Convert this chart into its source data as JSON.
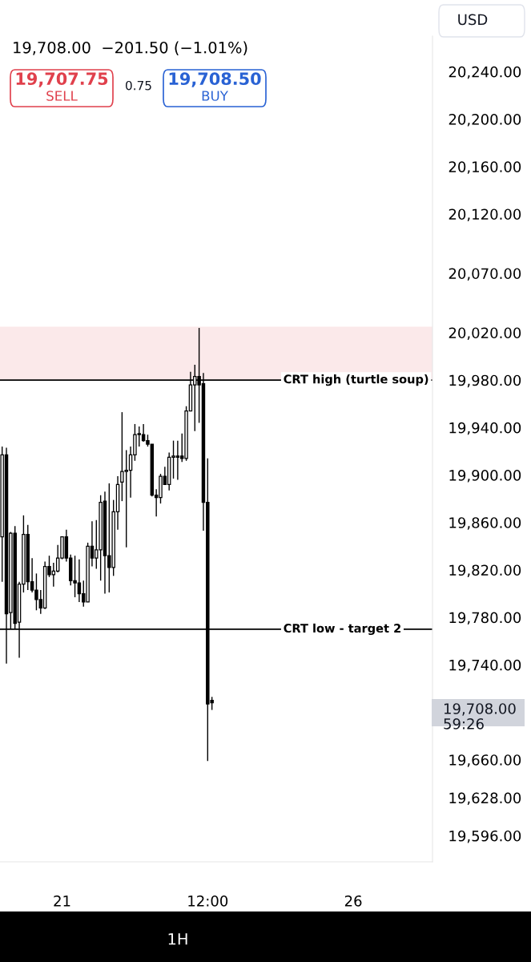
{
  "chart_data": {
    "type": "candlestick",
    "subtitle": "19,708.00  −201.50 (−1.01%)",
    "categories": [
      null,
      null,
      null,
      null,
      null,
      null,
      null,
      null,
      null,
      null,
      null,
      null,
      null,
      null,
      "21",
      null,
      null,
      null,
      null,
      null,
      null,
      null,
      null,
      null,
      null,
      null,
      null,
      null,
      null,
      null,
      null,
      null,
      null,
      null,
      null,
      null,
      null,
      null,
      null,
      null,
      null,
      null,
      null,
      null,
      null,
      null,
      null,
      null,
      "12:00",
      null,
      null,
      null,
      null,
      null,
      null,
      null,
      null,
      null,
      null,
      null,
      null,
      null,
      null,
      null,
      null,
      null,
      null,
      null,
      null,
      null,
      null,
      null,
      null,
      null,
      null,
      null,
      null,
      null,
      null,
      null,
      null,
      null,
      "26",
      null,
      null,
      null,
      null,
      null,
      null,
      null,
      null,
      null,
      null,
      null,
      null,
      null,
      null,
      null,
      null,
      null,
      null
    ],
    "color": "#000000",
    "ohlc": [
      [
        19848,
        19924,
        19810,
        19917
      ],
      [
        19917,
        19923,
        19741,
        19783
      ],
      [
        19784,
        19852,
        19770,
        19851
      ],
      [
        19851,
        19857,
        19770,
        19775
      ],
      [
        19776,
        19810,
        19746,
        19808
      ],
      [
        19808,
        19866,
        19801,
        19850
      ],
      [
        19850,
        19858,
        19803,
        19810
      ],
      [
        19810,
        19830,
        19801,
        19803
      ],
      [
        19803,
        19817,
        19786,
        19795
      ],
      [
        19795,
        19803,
        19783,
        19788
      ],
      [
        19788,
        19827,
        19787,
        19823
      ],
      [
        19823,
        19832,
        19814,
        19816
      ],
      [
        19816,
        19826,
        19806,
        19819
      ],
      [
        19819,
        19841,
        19818,
        19830
      ],
      [
        19830,
        19848,
        19829,
        19848
      ],
      [
        19848,
        19854,
        19827,
        19830
      ],
      [
        19830,
        19833,
        19807,
        19811
      ],
      [
        19811,
        19832,
        19797,
        19809
      ],
      [
        19809,
        19829,
        19793,
        19800
      ],
      [
        19800,
        19811,
        19789,
        19793
      ],
      [
        19793,
        19843,
        19793,
        19840
      ],
      [
        19840,
        19861,
        19823,
        19830
      ],
      [
        19830,
        19862,
        19821,
        19837
      ],
      [
        19837,
        19883,
        19811,
        19877
      ],
      [
        19878,
        19886,
        19800,
        19832
      ],
      [
        19832,
        19893,
        19801,
        19822
      ],
      [
        19822,
        19879,
        19815,
        19869
      ],
      [
        19869,
        19899,
        19854,
        19892
      ],
      [
        19894,
        19953,
        19878,
        19903
      ],
      [
        19903,
        19921,
        19839,
        19904
      ],
      [
        19904,
        19924,
        19881,
        19917
      ],
      [
        19917,
        19943,
        19912,
        19934
      ],
      [
        19934,
        19941,
        19924,
        19935
      ],
      [
        19934,
        19943,
        19928,
        19929
      ],
      [
        19929,
        19934,
        19924,
        19926
      ],
      [
        19926,
        19926,
        19882,
        19883
      ],
      [
        19883,
        19888,
        19865,
        19881
      ],
      [
        19881,
        19901,
        19876,
        19899
      ],
      [
        19899,
        19907,
        19892,
        19892
      ],
      [
        19892,
        19919,
        19887,
        19915
      ],
      [
        19915,
        19929,
        19897,
        19916
      ],
      [
        19916,
        19929,
        19896,
        19915
      ],
      [
        19916,
        19935,
        19911,
        19914
      ],
      [
        19914,
        19958,
        19912,
        19954
      ],
      [
        19954,
        19987,
        19954,
        19976
      ],
      [
        19976,
        19993,
        19937,
        19983
      ],
      [
        19983,
        20024,
        19944,
        19976
      ],
      [
        19977,
        19986,
        19853,
        19877
      ],
      [
        19877,
        19914,
        19659,
        19707
      ],
      [
        19710,
        19713,
        19702,
        19708
      ],
      null,
      null,
      null,
      null,
      null,
      null,
      null,
      null,
      null,
      null,
      null,
      null,
      null,
      null,
      null,
      null,
      null,
      null,
      null,
      null,
      null,
      null,
      null,
      null,
      null,
      null,
      null,
      null,
      null,
      null,
      null,
      null,
      null,
      null,
      null,
      null,
      null,
      null,
      null,
      null,
      null,
      null,
      null,
      null,
      null,
      null,
      null,
      null,
      null,
      null,
      null
    ],
    "ylim": [
      19574,
      20270
    ],
    "yticks": [
      {
        "value": 20240,
        "label": "20,240.00"
      },
      {
        "value": 20200,
        "label": "20,200.00"
      },
      {
        "value": 20160,
        "label": "20,160.00"
      },
      {
        "value": 20120,
        "label": "20,120.00"
      },
      {
        "value": 20070,
        "label": "20,070.00"
      },
      {
        "value": 20020,
        "label": "20,020.00"
      },
      {
        "value": 19980,
        "label": "19,980.00"
      },
      {
        "value": 19940,
        "label": "19,940.00"
      },
      {
        "value": 19900,
        "label": "19,900.00"
      },
      {
        "value": 19860,
        "label": "19,860.00"
      },
      {
        "value": 19820,
        "label": "19,820.00"
      },
      {
        "value": 19780,
        "label": "19,780.00"
      },
      {
        "value": 19740,
        "label": "19,740.00"
      },
      {
        "value": 19660,
        "label": "19,660.00"
      },
      {
        "value": 19628,
        "label": "19,628.00"
      },
      {
        "value": 19596,
        "label": "19,596.00"
      }
    ],
    "ref_lines": [
      {
        "axis": "y",
        "value": 19980,
        "label": "CRT high (turtle soup)",
        "color": "#000000"
      },
      {
        "axis": "y",
        "value": 19770,
        "label": "CRT low - target 2",
        "color": "#000000"
      }
    ],
    "bands": [
      {
        "axis": "y",
        "from": 19980,
        "to": 20025,
        "color": "#fbe9ea"
      }
    ],
    "annotations": [
      "USD",
      "19,707.75",
      "SELL",
      "0.75",
      "19,708.50",
      "BUY",
      "1H",
      "19,708.00\n59:26"
    ]
  }
}
